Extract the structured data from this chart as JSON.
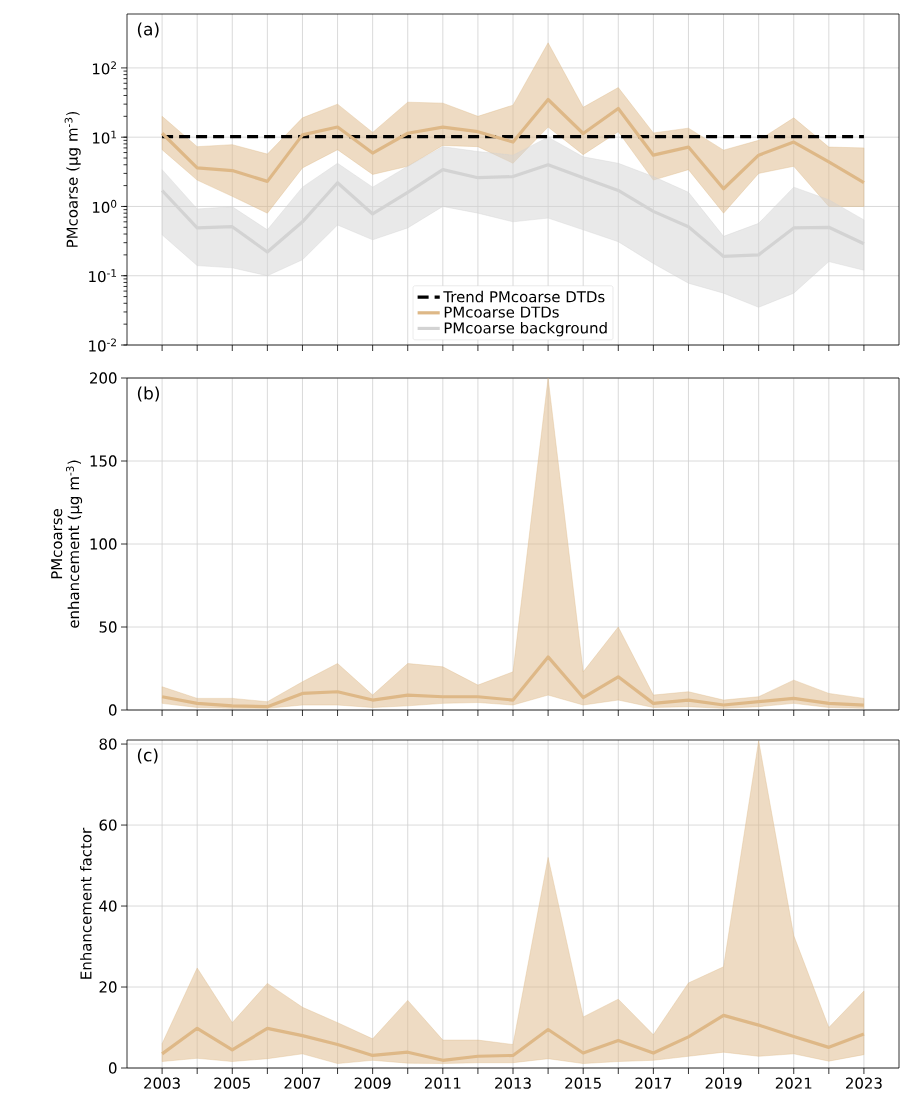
{
  "chart_data": [
    {
      "type": "line",
      "ylabel": "PMcoarse (µg m$^{-3}$)",
      "annotations": [
        "(a)"
      ],
      "log": true,
      "grid": true,
      "legend": "bottom",
      "tick_labels": "y",
      "x": [
        2003,
        2004,
        2005,
        2006,
        2007,
        2008,
        2009,
        2010,
        2011,
        2012,
        2013,
        2014,
        2015,
        2016,
        2017,
        2018,
        2019,
        2020,
        2021,
        2022,
        2023
      ],
      "xlim": [
        2002,
        2024
      ],
      "xticks": [
        2003,
        {
          "value": 2004,
          "label": null
        },
        2005,
        {
          "value": 2006,
          "label": null
        },
        2007,
        {
          "value": 2008,
          "label": null
        },
        2009,
        {
          "value": 2010,
          "label": null
        },
        2011,
        {
          "value": 2012,
          "label": null
        },
        2013,
        {
          "value": 2014,
          "label": null
        },
        2015,
        {
          "value": 2016,
          "label": null
        },
        2017,
        {
          "value": 2018,
          "label": null
        },
        2019,
        {
          "value": 2020,
          "label": null
        },
        2021,
        {
          "value": 2022,
          "label": null
        },
        2023
      ],
      "ylim": [
        0.01,
        600
      ],
      "yticks": [
        {
          "value": 0.01,
          "label": "10$^{-2}$"
        },
        {
          "value": 0.1,
          "label": "10$^{-1}$"
        },
        {
          "value": 1,
          "label": "10$^{0}$"
        },
        {
          "value": 10,
          "label": "10$^{1}$"
        },
        {
          "value": 100,
          "label": "10$^{2}$"
        }
      ],
      "series": [
        {
          "name": "Trend PMcoarse DTDs",
          "type": "line",
          "line_style": "dashed",
          "color": "#000000",
          "x": [
            2003,
            2023
          ],
          "values": [
            10.2,
            10.2
          ]
        },
        {
          "name": "PMcoarse DTDs",
          "color": "#deb887",
          "values": [
            11.4,
            3.6,
            3.3,
            2.3,
            10.8,
            14,
            5.9,
            11.4,
            14,
            12,
            8.5,
            35,
            11.3,
            26,
            5.5,
            7.2,
            1.8,
            5.5,
            8.5,
            4.4,
            2.2
          ],
          "upper": [
            20,
            7.3,
            7.8,
            5.7,
            19,
            30,
            11.7,
            32,
            31,
            20,
            29,
            230,
            27,
            52,
            11.5,
            13.5,
            6.5,
            9,
            19,
            7.2,
            7
          ],
          "lower": [
            6.6,
            2.4,
            1.4,
            0.8,
            3.6,
            6.6,
            2.9,
            3.8,
            7.6,
            7.3,
            4.2,
            14,
            5.6,
            12,
            2.4,
            3.4,
            0.8,
            3,
            3.8,
            1.0,
            1.0
          ]
        },
        {
          "name": "PMcoarse background",
          "color": "#d3d3d3",
          "values": [
            1.7,
            0.49,
            0.51,
            0.22,
            0.6,
            2.2,
            0.78,
            1.6,
            3.4,
            2.6,
            2.7,
            4.0,
            2.6,
            1.7,
            0.85,
            0.51,
            0.19,
            0.2,
            0.49,
            0.5,
            0.29
          ],
          "upper": [
            3.4,
            0.92,
            0.99,
            0.46,
            1.9,
            4.2,
            1.9,
            3.8,
            7.3,
            6.2,
            5.5,
            10,
            5.2,
            4.2,
            2.7,
            1.6,
            0.37,
            0.57,
            1.9,
            1.25,
            0.64
          ],
          "lower": [
            0.39,
            0.14,
            0.13,
            0.1,
            0.17,
            0.54,
            0.33,
            0.49,
            1.0,
            0.8,
            0.6,
            0.68,
            0.46,
            0.31,
            0.15,
            0.078,
            0.056,
            0.035,
            0.056,
            0.16,
            0.12
          ]
        }
      ]
    },
    {
      "type": "line",
      "ylabel": "PMcoarse enhancement (µg m$^{-3}$)",
      "annotations": [
        "(b)"
      ],
      "grid": true,
      "tick_labels": "y",
      "x": [
        2003,
        2004,
        2005,
        2006,
        2007,
        2008,
        2009,
        2010,
        2011,
        2012,
        2013,
        2014,
        2015,
        2016,
        2017,
        2018,
        2019,
        2020,
        2021,
        2022,
        2023
      ],
      "xlim": [
        2002,
        2024
      ],
      "xticks": [
        2003,
        {
          "value": 2004,
          "label": null
        },
        2005,
        {
          "value": 2006,
          "label": null
        },
        2007,
        {
          "value": 2008,
          "label": null
        },
        2009,
        {
          "value": 2010,
          "label": null
        },
        2011,
        {
          "value": 2012,
          "label": null
        },
        2013,
        {
          "value": 2014,
          "label": null
        },
        2015,
        {
          "value": 2016,
          "label": null
        },
        2017,
        {
          "value": 2018,
          "label": null
        },
        2019,
        {
          "value": 2020,
          "label": null
        },
        2021,
        {
          "value": 2022,
          "label": null
        },
        2023
      ],
      "ylim": [
        0,
        200
      ],
      "yticks": [
        0,
        50,
        100,
        150,
        200
      ],
      "series": [
        {
          "color": "#deb887",
          "values": [
            8,
            4,
            2.5,
            2,
            10,
            11,
            6,
            9,
            8,
            8,
            6,
            32,
            7.5,
            20,
            4,
            6,
            3,
            5,
            7,
            4,
            3
          ],
          "upper": [
            14,
            7,
            7,
            5,
            17,
            28,
            9,
            28,
            26,
            15,
            23,
            200,
            23,
            50,
            9,
            11,
            6,
            8,
            18,
            10,
            7
          ],
          "lower": [
            4,
            1.5,
            1,
            1,
            3,
            3,
            1.5,
            2.5,
            4,
            4.5,
            3,
            9,
            3,
            6,
            1.5,
            2,
            1,
            2,
            4,
            1.5,
            1
          ]
        }
      ]
    },
    {
      "type": "line",
      "ylabel": "Enhancement factor",
      "annotations": [
        "(c)"
      ],
      "grid": true,
      "x": [
        2003,
        2004,
        2005,
        2006,
        2007,
        2008,
        2009,
        2010,
        2011,
        2012,
        2013,
        2014,
        2015,
        2016,
        2017,
        2018,
        2019,
        2020,
        2021,
        2022,
        2023
      ],
      "xlim": [
        2002,
        2024
      ],
      "xticks": [
        2003,
        {
          "value": 2004,
          "label": null
        },
        2005,
        {
          "value": 2006,
          "label": null
        },
        2007,
        {
          "value": 2008,
          "label": null
        },
        2009,
        {
          "value": 2010,
          "label": null
        },
        2011,
        {
          "value": 2012,
          "label": null
        },
        2013,
        {
          "value": 2014,
          "label": null
        },
        2015,
        {
          "value": 2016,
          "label": null
        },
        2017,
        {
          "value": 2018,
          "label": null
        },
        2019,
        {
          "value": 2020,
          "label": null
        },
        2021,
        {
          "value": 2022,
          "label": null
        },
        2023
      ],
      "ylim": [
        0,
        81
      ],
      "yticks": [
        0,
        20,
        40,
        60,
        80
      ],
      "series": [
        {
          "color": "#deb887",
          "values": [
            3.5,
            9.8,
            4.5,
            9.8,
            8,
            5.8,
            3.1,
            3.9,
            1.9,
            2.9,
            3.1,
            9.5,
            3.7,
            6.8,
            3.7,
            7.7,
            13,
            10.6,
            7.8,
            5.1,
            8.4
          ],
          "upper": [
            6,
            24.7,
            11.2,
            20.9,
            15,
            11.2,
            7.2,
            16.7,
            6.9,
            6.9,
            5.8,
            52,
            12.6,
            17,
            8.2,
            21,
            25,
            80.8,
            32.7,
            10,
            19
          ],
          "lower": [
            1.6,
            2.4,
            1.6,
            2.3,
            3.5,
            1.1,
            1.9,
            1.2,
            1.1,
            1.3,
            1.3,
            2.3,
            1.1,
            1.6,
            1.9,
            2.9,
            3.9,
            2.9,
            3.5,
            1.7,
            3.3
          ]
        }
      ]
    }
  ]
}
